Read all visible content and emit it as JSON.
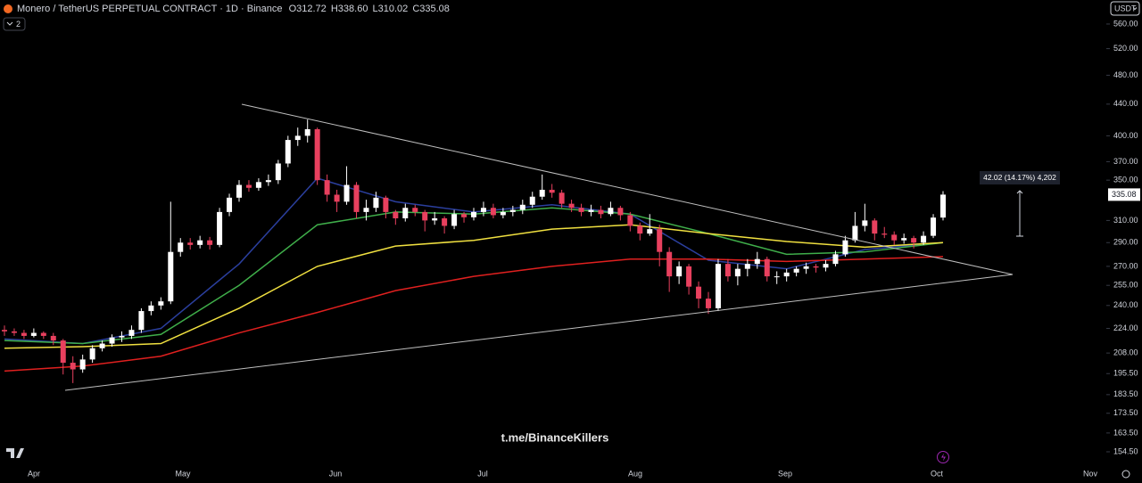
{
  "header": {
    "symbol": "Monero / TetherUS PERPETUAL CONTRACT · 1D · Binance",
    "ohlc": [
      "O312.72",
      "H338.60",
      "L310.02",
      "C335.08"
    ],
    "indicator_count": "2",
    "currency": "USDT"
  },
  "watermark": "t.me/BinanceKillers",
  "chart_data": {
    "type": "candlestick",
    "log_scale": true,
    "x_labels": [
      "Apr",
      "May",
      "Jun",
      "Jul",
      "Aug",
      "Sep",
      "Oct",
      "Nov"
    ],
    "up_color": "#ffffff",
    "down_color": "#e8405e",
    "candles": [
      [
        223,
        226,
        219,
        222
      ],
      [
        222,
        224,
        219,
        221
      ],
      [
        221,
        223,
        217,
        219
      ],
      [
        219,
        224,
        218,
        221
      ],
      [
        221,
        222,
        217,
        219
      ],
      [
        219,
        221,
        213,
        216
      ],
      [
        216,
        217,
        195,
        202
      ],
      [
        202,
        206,
        190,
        198
      ],
      [
        198,
        207,
        196,
        204
      ],
      [
        204,
        213,
        202,
        211
      ],
      [
        211,
        216,
        209,
        214
      ],
      [
        214,
        220,
        212,
        218
      ],
      [
        218,
        222,
        215,
        219
      ],
      [
        219,
        226,
        217,
        223
      ],
      [
        223,
        238,
        221,
        236
      ],
      [
        236,
        243,
        233,
        240
      ],
      [
        240,
        246,
        237,
        243
      ],
      [
        243,
        328,
        241,
        282
      ],
      [
        282,
        294,
        278,
        290
      ],
      [
        290,
        294,
        284,
        288
      ],
      [
        288,
        296,
        285,
        292
      ],
      [
        292,
        295,
        284,
        288
      ],
      [
        288,
        322,
        286,
        318
      ],
      [
        318,
        336,
        314,
        332
      ],
      [
        332,
        350,
        328,
        345
      ],
      [
        345,
        350,
        338,
        342
      ],
      [
        342,
        352,
        339,
        348
      ],
      [
        348,
        356,
        344,
        350
      ],
      [
        350,
        372,
        346,
        368
      ],
      [
        368,
        400,
        364,
        395
      ],
      [
        395,
        410,
        388,
        400
      ],
      [
        400,
        420,
        392,
        408
      ],
      [
        408,
        410,
        345,
        350
      ],
      [
        350,
        356,
        328,
        335
      ],
      [
        335,
        340,
        318,
        328
      ],
      [
        328,
        365,
        325,
        345
      ],
      [
        345,
        348,
        312,
        318
      ],
      [
        318,
        330,
        310,
        322
      ],
      [
        322,
        338,
        318,
        332
      ],
      [
        332,
        334,
        312,
        318
      ],
      [
        318,
        320,
        306,
        312
      ],
      [
        312,
        326,
        309,
        322
      ],
      [
        322,
        325,
        314,
        318
      ],
      [
        318,
        320,
        300,
        310
      ],
      [
        310,
        318,
        306,
        312
      ],
      [
        312,
        314,
        298,
        305
      ],
      [
        305,
        320,
        302,
        316
      ],
      [
        316,
        318,
        308,
        313
      ],
      [
        313,
        322,
        310,
        318
      ],
      [
        318,
        328,
        314,
        322
      ],
      [
        322,
        326,
        312,
        315
      ],
      [
        315,
        322,
        312,
        318
      ],
      [
        318,
        324,
        314,
        320
      ],
      [
        320,
        330,
        316,
        325
      ],
      [
        325,
        338,
        322,
        333
      ],
      [
        333,
        356,
        330,
        340
      ],
      [
        340,
        346,
        332,
        337
      ],
      [
        337,
        340,
        322,
        326
      ],
      [
        326,
        330,
        318,
        322
      ],
      [
        322,
        326,
        314,
        318
      ],
      [
        318,
        325,
        314,
        320
      ],
      [
        320,
        324,
        312,
        316
      ],
      [
        316,
        328,
        314,
        322
      ],
      [
        322,
        324,
        310,
        315
      ],
      [
        315,
        318,
        300,
        305
      ],
      [
        305,
        308,
        292,
        298
      ],
      [
        298,
        316,
        296,
        302
      ],
      [
        302,
        306,
        270,
        282
      ],
      [
        282,
        286,
        250,
        262
      ],
      [
        262,
        274,
        256,
        270
      ],
      [
        270,
        272,
        248,
        254
      ],
      [
        254,
        258,
        238,
        245
      ],
      [
        245,
        250,
        234,
        238
      ],
      [
        238,
        276,
        236,
        272
      ],
      [
        272,
        276,
        258,
        262
      ],
      [
        262,
        272,
        255,
        268
      ],
      [
        268,
        276,
        262,
        272
      ],
      [
        272,
        282,
        268,
        276
      ],
      [
        276,
        278,
        258,
        262
      ],
      [
        262,
        266,
        256,
        262
      ],
      [
        262,
        268,
        258,
        265
      ],
      [
        265,
        270,
        262,
        268
      ],
      [
        268,
        273,
        264,
        270
      ],
      [
        270,
        272,
        265,
        269
      ],
      [
        269,
        275,
        266,
        272
      ],
      [
        272,
        283,
        270,
        280
      ],
      [
        280,
        296,
        278,
        292
      ],
      [
        292,
        318,
        290,
        305
      ],
      [
        305,
        326,
        300,
        310
      ],
      [
        310,
        312,
        292,
        298
      ],
      [
        298,
        304,
        294,
        297
      ],
      [
        297,
        300,
        288,
        292
      ],
      [
        292,
        298,
        289,
        294
      ],
      [
        294,
        296,
        285,
        290
      ],
      [
        290,
        300,
        288,
        296
      ],
      [
        296,
        316,
        294,
        312.72
      ],
      [
        312.72,
        338.6,
        310.02,
        335.08
      ]
    ],
    "series": [
      {
        "color": "#2b3f9e",
        "values": [
          217,
          214,
          224,
          272,
          352,
          328,
          318,
          325,
          316,
          275,
          268,
          284,
          290
        ]
      },
      {
        "color": "#3fae4a",
        "values": [
          216,
          214,
          220,
          255,
          306,
          318,
          316,
          322,
          316,
          298,
          280,
          282,
          290
        ]
      },
      {
        "color": "#f0e040",
        "values": [
          211,
          212,
          214,
          238,
          270,
          287,
          292,
          302,
          306,
          298,
          291,
          286,
          290
        ]
      },
      {
        "color": "#e0201f",
        "values": [
          197,
          200,
          206,
          221,
          235,
          251,
          262,
          270,
          276,
          276,
          274,
          276,
          278
        ]
      }
    ],
    "ylim": [
      150,
      602
    ],
    "yticks": [
      {
        "value": 560,
        "label": "560.00"
      },
      {
        "value": 520,
        "label": "520.00"
      },
      {
        "value": 480,
        "label": "480.00"
      },
      {
        "value": 440,
        "label": "440.00"
      },
      {
        "value": 400,
        "label": "400.00"
      },
      {
        "value": 370,
        "label": "370.00"
      },
      {
        "value": 350,
        "label": "350.00"
      },
      {
        "value": 310,
        "label": "310.00"
      },
      {
        "value": 290,
        "label": "290.00"
      },
      {
        "value": 270,
        "label": "270.00"
      },
      {
        "value": 255,
        "label": "255.00"
      },
      {
        "value": 240,
        "label": "240.00"
      },
      {
        "value": 224,
        "label": "224.00"
      },
      {
        "value": 208,
        "label": "208.00"
      },
      {
        "value": 195.5,
        "label": "195.50"
      },
      {
        "value": 183.5,
        "label": "183.50"
      },
      {
        "value": 173.5,
        "label": "173.50"
      },
      {
        "value": 163.5,
        "label": "163.50"
      },
      {
        "value": 154.5,
        "label": "154.50"
      }
    ],
    "last_price": 335.08,
    "measurement": "42.02 (14.17%) 4,202"
  }
}
